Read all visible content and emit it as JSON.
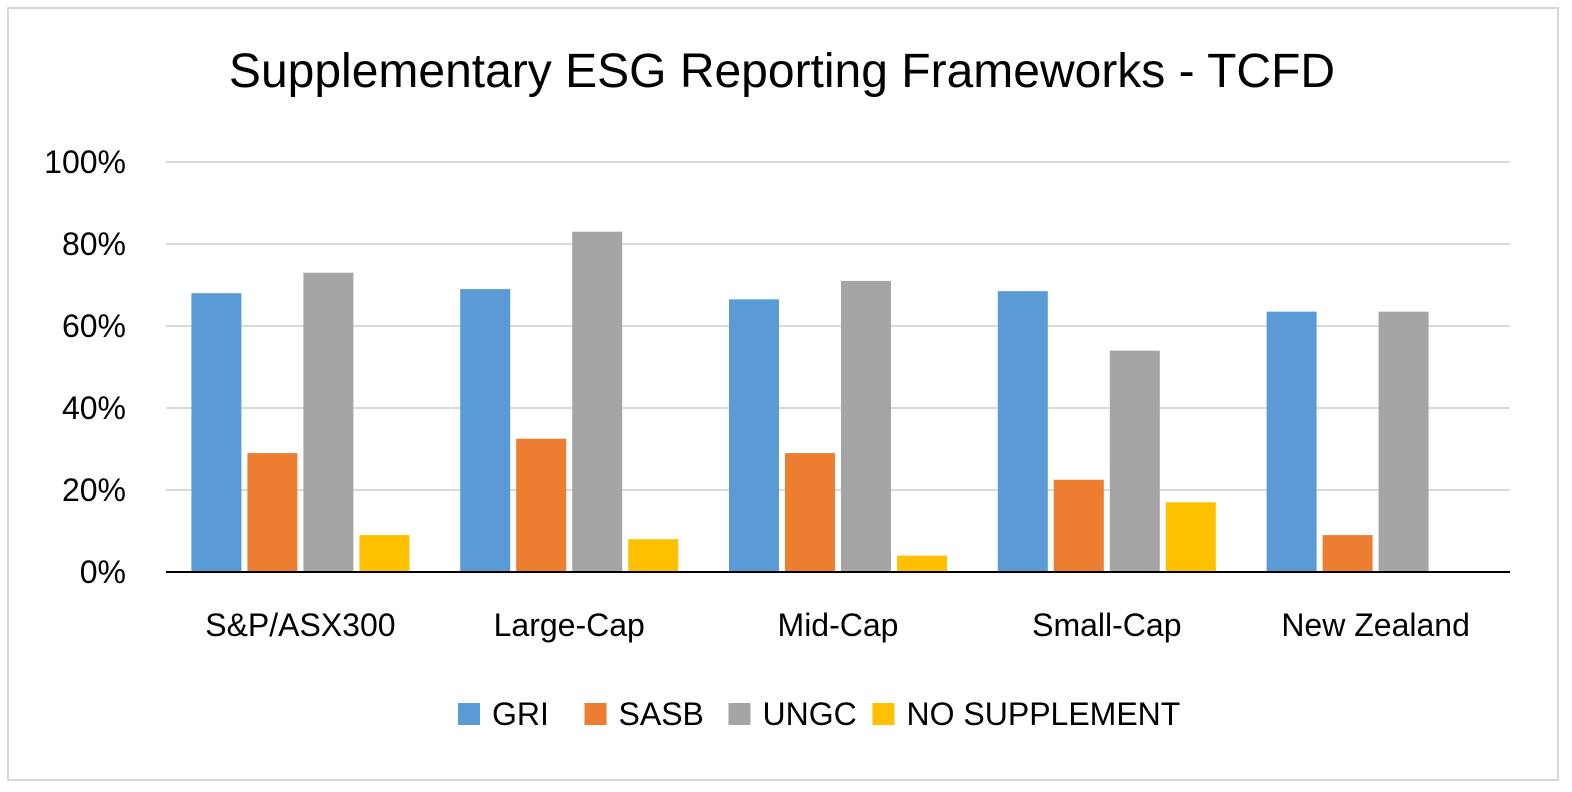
{
  "chart_data": {
    "type": "bar",
    "title": "Supplementary ESG Reporting Frameworks - TCFD",
    "xlabel": "",
    "ylabel": "",
    "categories": [
      "S&P/ASX300",
      "Large-Cap",
      "Mid-Cap",
      "Small-Cap",
      "New Zealand"
    ],
    "series": [
      {
        "name": "GRI",
        "color": "#5b9bd5",
        "values": [
          68,
          69,
          66.5,
          68.5,
          63.5
        ]
      },
      {
        "name": "SASB",
        "color": "#ed7d31",
        "values": [
          29,
          32.5,
          29,
          22.5,
          9
        ]
      },
      {
        "name": "UNGC",
        "color": "#a5a5a5",
        "values": [
          73,
          83,
          71,
          54,
          63.5
        ]
      },
      {
        "name": "NO SUPPLEMENT",
        "color": "#ffc000",
        "values": [
          9,
          8,
          4,
          17,
          0
        ]
      }
    ],
    "ylim": [
      0,
      100
    ],
    "yticks": [
      "0%",
      "20%",
      "40%",
      "60%",
      "80%",
      "100%"
    ],
    "grid": true,
    "legend_position": "bottom"
  }
}
